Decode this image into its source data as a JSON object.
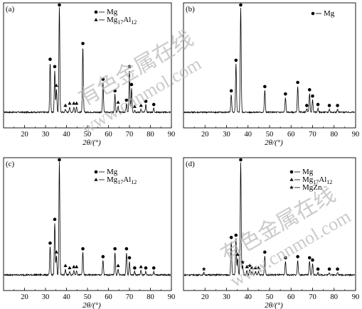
{
  "watermark": {
    "line1": "有色金属在线",
    "line2": "www.cnnmol.com"
  },
  "chart_data": [
    {
      "type": "line",
      "panel": "(a)",
      "xlabel": "2θ/(°)",
      "xlim": [
        10,
        90
      ],
      "x_ticks": [
        "20",
        "30",
        "40",
        "50",
        "60",
        "70",
        "80",
        "90"
      ],
      "legend": [
        {
          "marker": "circle",
          "label": "Mg"
        },
        {
          "marker": "triangle",
          "label": "Mg17Al12"
        }
      ],
      "peaks": [
        {
          "x": 32.2,
          "h": 0.47
        },
        {
          "x": 34.4,
          "h": 0.4
        },
        {
          "x": 35.2,
          "h": 0.22
        },
        {
          "x": 36.6,
          "h": 1.0
        },
        {
          "x": 39.5,
          "h": 0.03
        },
        {
          "x": 41.5,
          "h": 0.05
        },
        {
          "x": 43.5,
          "h": 0.05
        },
        {
          "x": 44.8,
          "h": 0.05
        },
        {
          "x": 47.8,
          "h": 0.62
        },
        {
          "x": 57.4,
          "h": 0.28
        },
        {
          "x": 63.1,
          "h": 0.17
        },
        {
          "x": 64.6,
          "h": 0.06
        },
        {
          "x": 68.6,
          "h": 0.08
        },
        {
          "x": 70.0,
          "h": 0.4
        },
        {
          "x": 71.0,
          "h": 0.23
        },
        {
          "x": 72.5,
          "h": 0.02
        },
        {
          "x": 75.5,
          "h": 0.03
        },
        {
          "x": 77.8,
          "h": 0.07
        },
        {
          "x": 81.6,
          "h": 0.04
        }
      ],
      "markers": [
        {
          "x": 32.2,
          "m": "circle"
        },
        {
          "x": 34.4,
          "m": "circle"
        },
        {
          "x": 35.2,
          "m": "triangle"
        },
        {
          "x": 36.6,
          "m": "circle"
        },
        {
          "x": 39.5,
          "m": "triangle"
        },
        {
          "x": 41.5,
          "m": "triangle"
        },
        {
          "x": 43.5,
          "m": "triangle"
        },
        {
          "x": 44.8,
          "m": "triangle"
        },
        {
          "x": 47.8,
          "m": "circle"
        },
        {
          "x": 57.4,
          "m": "circle"
        },
        {
          "x": 63.1,
          "m": "circle"
        },
        {
          "x": 64.6,
          "m": "triangle"
        },
        {
          "x": 68.6,
          "m": "circle"
        },
        {
          "x": 70.0,
          "m": "circle"
        },
        {
          "x": 71.0,
          "m": "circle"
        },
        {
          "x": 72.5,
          "m": "triangle"
        },
        {
          "x": 75.5,
          "m": "triangle"
        },
        {
          "x": 77.8,
          "m": "circle"
        },
        {
          "x": 81.6,
          "m": "circle"
        }
      ]
    },
    {
      "type": "line",
      "panel": "(b)",
      "xlabel": "2θ/(°)",
      "xlim": [
        10,
        90
      ],
      "x_ticks": [
        "20",
        "30",
        "40",
        "50",
        "60",
        "70",
        "80",
        "90"
      ],
      "legend": [
        {
          "marker": "circle",
          "label": "Mg"
        }
      ],
      "peaks": [
        {
          "x": 32.2,
          "h": 0.17
        },
        {
          "x": 34.4,
          "h": 0.46
        },
        {
          "x": 36.6,
          "h": 1.0
        },
        {
          "x": 47.8,
          "h": 0.21
        },
        {
          "x": 57.4,
          "h": 0.14
        },
        {
          "x": 63.1,
          "h": 0.25
        },
        {
          "x": 67.3,
          "h": 0.03
        },
        {
          "x": 68.6,
          "h": 0.18
        },
        {
          "x": 70.0,
          "h": 0.12
        },
        {
          "x": 72.5,
          "h": 0.04
        },
        {
          "x": 77.8,
          "h": 0.03
        },
        {
          "x": 81.6,
          "h": 0.03
        }
      ],
      "markers": [
        {
          "x": 32.2,
          "m": "circle"
        },
        {
          "x": 34.4,
          "m": "circle"
        },
        {
          "x": 36.6,
          "m": "circle"
        },
        {
          "x": 47.8,
          "m": "circle"
        },
        {
          "x": 57.4,
          "m": "circle"
        },
        {
          "x": 63.1,
          "m": "circle"
        },
        {
          "x": 67.3,
          "m": "circle"
        },
        {
          "x": 68.6,
          "m": "circle"
        },
        {
          "x": 70.0,
          "m": "circle"
        },
        {
          "x": 72.5,
          "m": "circle"
        },
        {
          "x": 77.8,
          "m": "circle"
        },
        {
          "x": 81.6,
          "m": "circle"
        }
      ]
    },
    {
      "type": "line",
      "panel": "(c)",
      "xlabel": "2θ/(°)",
      "xlim": [
        10,
        90
      ],
      "x_ticks": [
        "20",
        "30",
        "40",
        "50",
        "60",
        "70",
        "80",
        "90"
      ],
      "legend": [
        {
          "marker": "circle",
          "label": "Mg"
        },
        {
          "marker": "triangle",
          "label": "Mg17Al12"
        }
      ],
      "peaks": [
        {
          "x": 32.2,
          "h": 0.25
        },
        {
          "x": 34.4,
          "h": 0.46
        },
        {
          "x": 35.2,
          "h": 0.17
        },
        {
          "x": 36.6,
          "h": 1.0
        },
        {
          "x": 39.5,
          "h": 0.05
        },
        {
          "x": 41.5,
          "h": 0.03
        },
        {
          "x": 43.5,
          "h": 0.04
        },
        {
          "x": 44.8,
          "h": 0.04
        },
        {
          "x": 47.8,
          "h": 0.2
        },
        {
          "x": 57.4,
          "h": 0.13
        },
        {
          "x": 63.1,
          "h": 0.2
        },
        {
          "x": 64.6,
          "h": 0.05
        },
        {
          "x": 68.6,
          "h": 0.2
        },
        {
          "x": 70.0,
          "h": 0.12
        },
        {
          "x": 72.5,
          "h": 0.03
        },
        {
          "x": 75.5,
          "h": 0.04
        },
        {
          "x": 77.8,
          "h": 0.03
        },
        {
          "x": 81.6,
          "h": 0.03
        }
      ],
      "markers": [
        {
          "x": 32.2,
          "m": "circle"
        },
        {
          "x": 34.4,
          "m": "circle"
        },
        {
          "x": 35.2,
          "m": "triangle"
        },
        {
          "x": 36.6,
          "m": "circle"
        },
        {
          "x": 39.5,
          "m": "triangle"
        },
        {
          "x": 41.5,
          "m": "triangle"
        },
        {
          "x": 43.5,
          "m": "triangle"
        },
        {
          "x": 44.8,
          "m": "triangle"
        },
        {
          "x": 47.8,
          "m": "circle"
        },
        {
          "x": 57.4,
          "m": "circle"
        },
        {
          "x": 63.1,
          "m": "circle"
        },
        {
          "x": 64.6,
          "m": "triangle"
        },
        {
          "x": 68.6,
          "m": "circle"
        },
        {
          "x": 70.0,
          "m": "circle"
        },
        {
          "x": 72.5,
          "m": "circle"
        },
        {
          "x": 75.5,
          "m": "triangle"
        },
        {
          "x": 77.8,
          "m": "circle"
        },
        {
          "x": 81.6,
          "m": "circle"
        }
      ]
    },
    {
      "type": "line",
      "panel": "(d)",
      "xlabel": "2θ/(°)",
      "xlim": [
        10,
        90
      ],
      "x_ticks": [
        "20",
        "30",
        "40",
        "50",
        "60",
        "70",
        "80",
        "90"
      ],
      "legend": [
        {
          "marker": "circle",
          "label": "Mg"
        },
        {
          "marker": "triangle",
          "label": "Mg17Al12"
        },
        {
          "marker": "star",
          "label": "MgZn"
        }
      ],
      "peaks": [
        {
          "x": 19.5,
          "h": 0.02
        },
        {
          "x": 32.2,
          "h": 0.3
        },
        {
          "x": 34.4,
          "h": 0.32
        },
        {
          "x": 35.2,
          "h": 0.15
        },
        {
          "x": 36.6,
          "h": 1.0
        },
        {
          "x": 37.5,
          "h": 0.08
        },
        {
          "x": 39.5,
          "h": 0.04
        },
        {
          "x": 40.8,
          "h": 0.05
        },
        {
          "x": 41.8,
          "h": 0.03
        },
        {
          "x": 43.5,
          "h": 0.03
        },
        {
          "x": 44.8,
          "h": 0.03
        },
        {
          "x": 47.8,
          "h": 0.17
        },
        {
          "x": 57.4,
          "h": 0.12
        },
        {
          "x": 63.1,
          "h": 0.13
        },
        {
          "x": 68.6,
          "h": 0.12
        },
        {
          "x": 70.0,
          "h": 0.1
        },
        {
          "x": 72.5,
          "h": 0.02
        },
        {
          "x": 77.8,
          "h": 0.02
        },
        {
          "x": 81.6,
          "h": 0.02
        }
      ],
      "markers": [
        {
          "x": 19.5,
          "m": "star"
        },
        {
          "x": 32.2,
          "m": "circle"
        },
        {
          "x": 34.4,
          "m": "circle"
        },
        {
          "x": 35.2,
          "m": "triangle"
        },
        {
          "x": 36.6,
          "m": "circle"
        },
        {
          "x": 37.5,
          "m": "star"
        },
        {
          "x": 39.5,
          "m": "triangle"
        },
        {
          "x": 40.8,
          "m": "star"
        },
        {
          "x": 41.8,
          "m": "triangle"
        },
        {
          "x": 43.5,
          "m": "triangle"
        },
        {
          "x": 44.8,
          "m": "triangle"
        },
        {
          "x": 47.8,
          "m": "circle"
        },
        {
          "x": 57.4,
          "m": "circle"
        },
        {
          "x": 63.1,
          "m": "circle"
        },
        {
          "x": 68.6,
          "m": "circle"
        },
        {
          "x": 70.0,
          "m": "circle"
        },
        {
          "x": 72.5,
          "m": "circle"
        },
        {
          "x": 77.8,
          "m": "circle"
        },
        {
          "x": 81.6,
          "m": "circle"
        }
      ]
    }
  ]
}
